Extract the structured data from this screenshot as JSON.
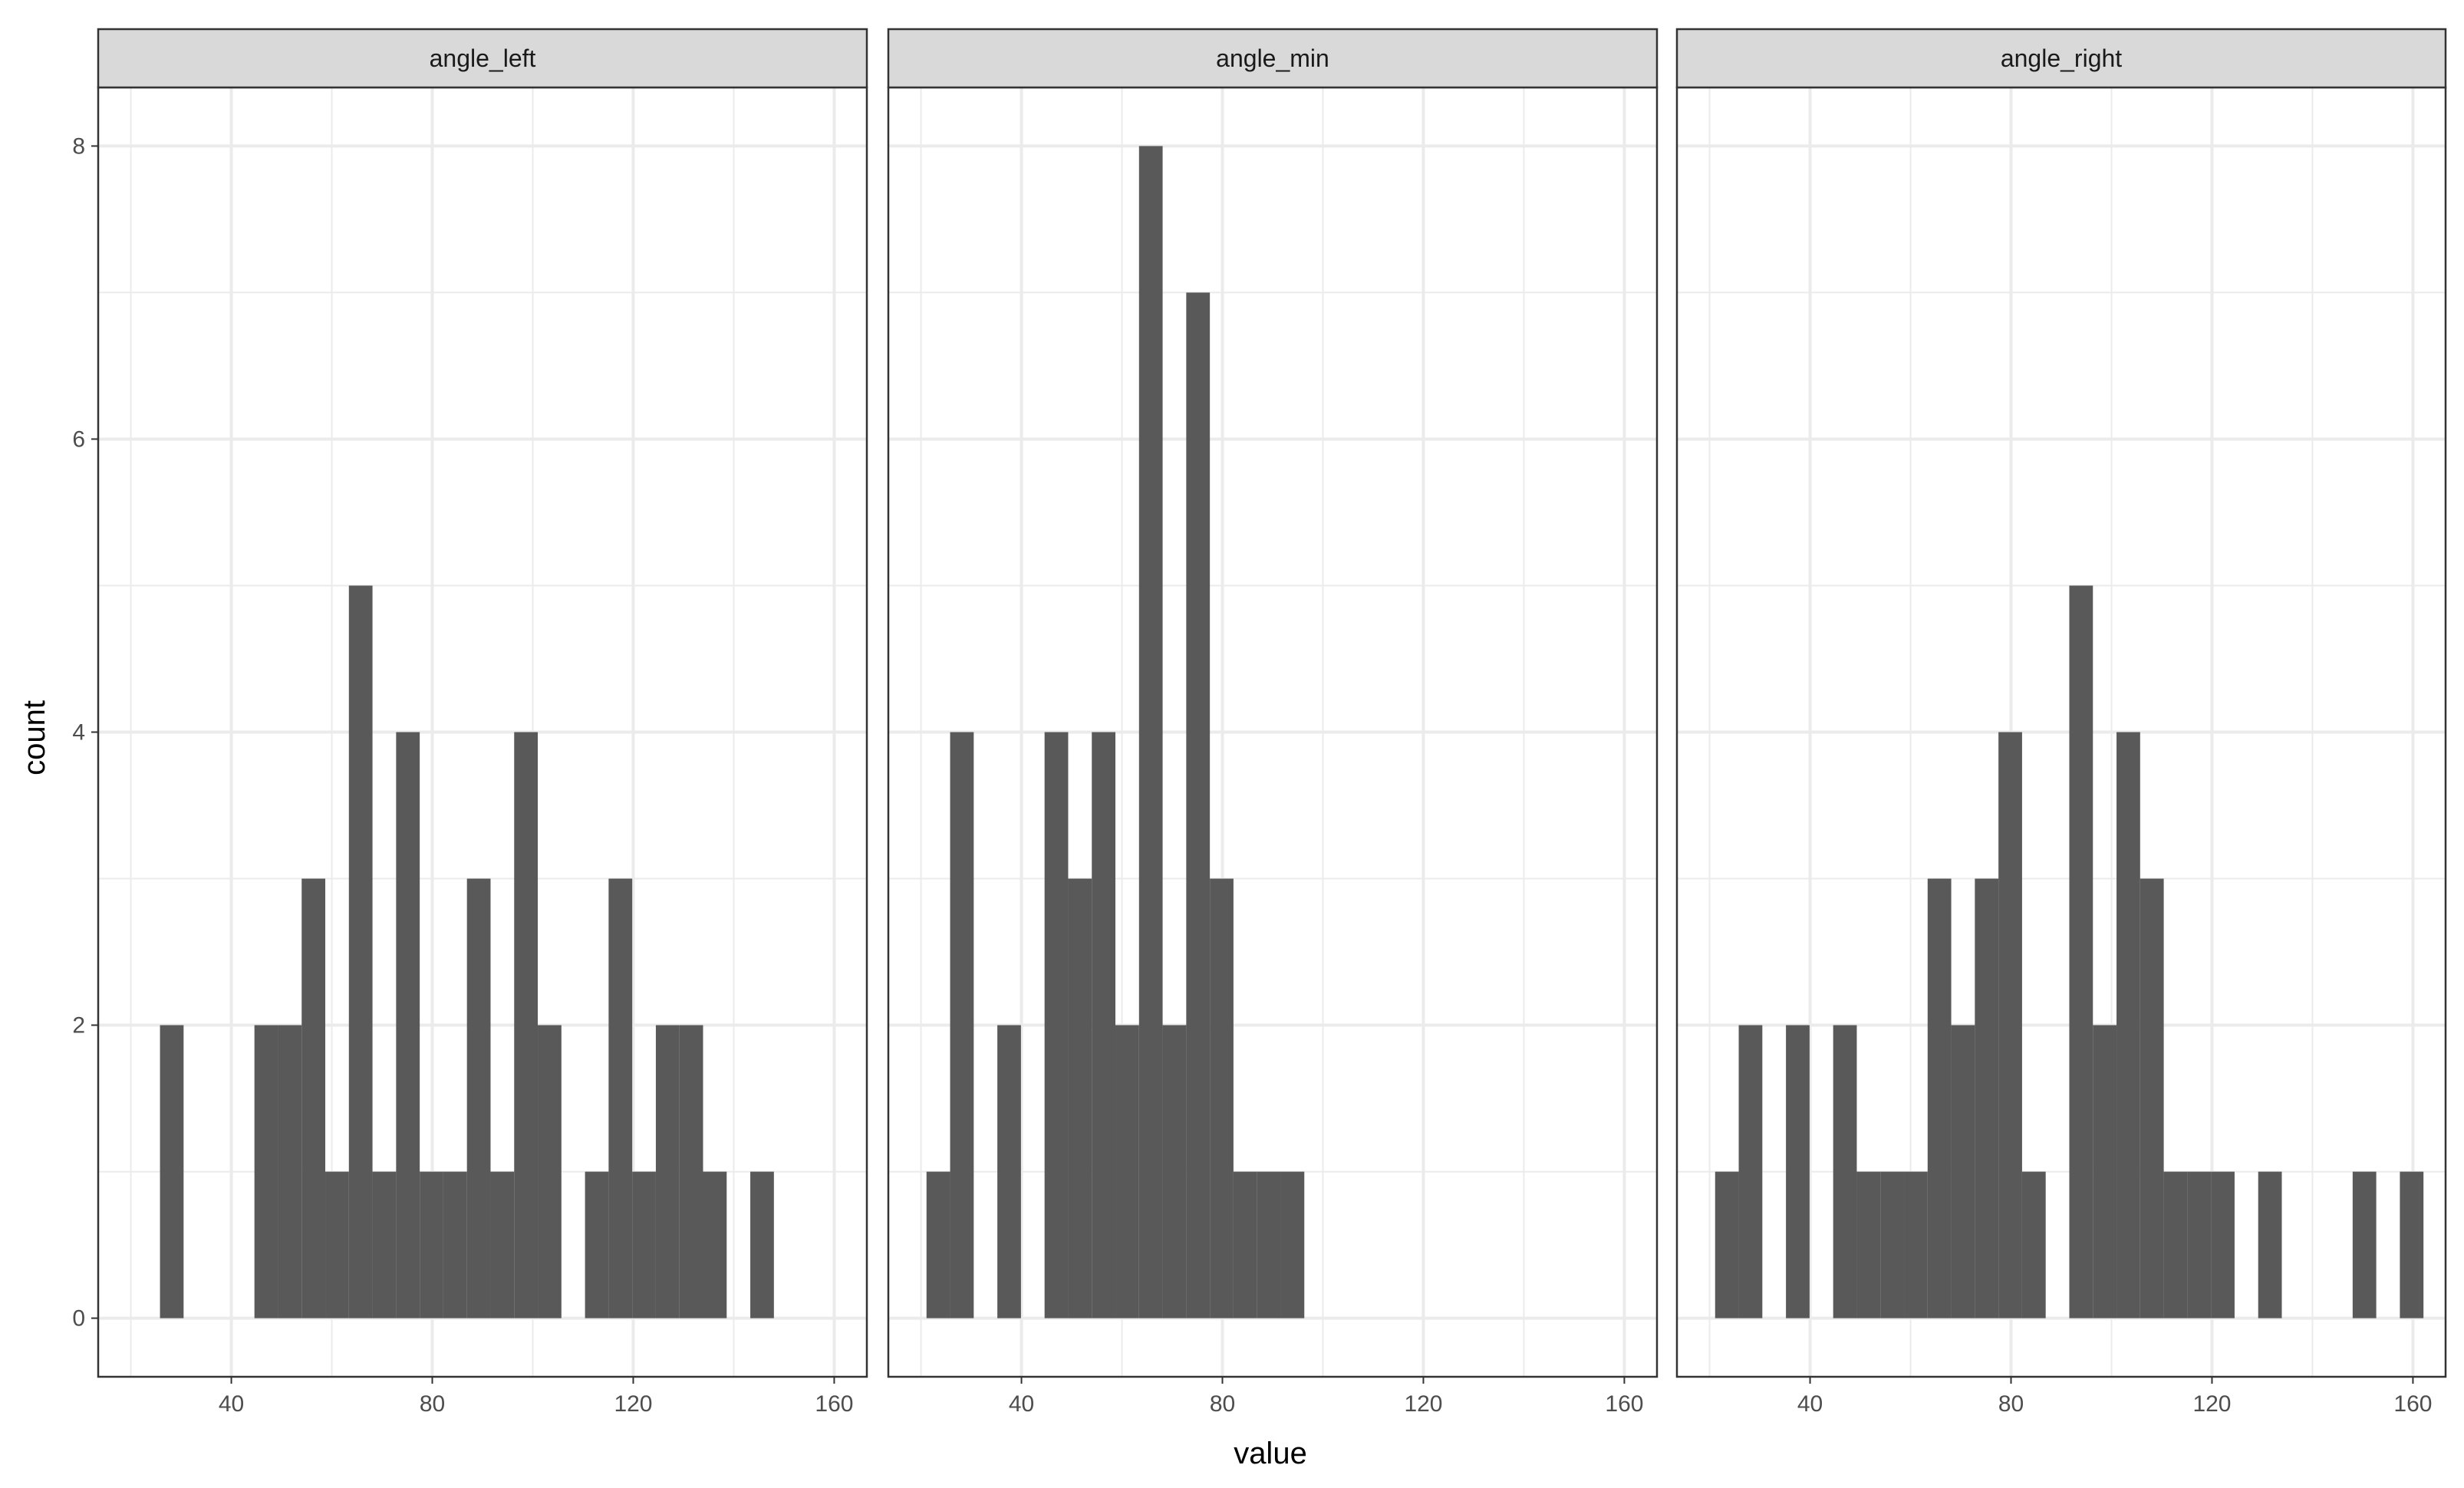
{
  "chart_data": {
    "type": "bar",
    "subtype": "faceted-histogram",
    "xlabel": "value",
    "ylabel": "count",
    "xlim": [
      13.5,
      166.5
    ],
    "ylim": [
      -0.4,
      8.4
    ],
    "x_ticks": [
      40,
      80,
      120,
      160
    ],
    "y_ticks": [
      0,
      2,
      4,
      6,
      8
    ],
    "bin_width": 4.7,
    "grid": true,
    "bar_color": "#595959",
    "strip_color": "#d9d9d9",
    "panel_border_color": "#333333",
    "grid_color": "#ebebeb",
    "facets": [
      {
        "name": "angle_left",
        "bins": [
          {
            "x0": 25.8,
            "x1": 30.5,
            "count": 2
          },
          {
            "x0": 44.6,
            "x1": 49.3,
            "count": 2
          },
          {
            "x0": 49.3,
            "x1": 54.0,
            "count": 2
          },
          {
            "x0": 54.0,
            "x1": 58.7,
            "count": 3
          },
          {
            "x0": 58.7,
            "x1": 63.4,
            "count": 1
          },
          {
            "x0": 63.4,
            "x1": 68.1,
            "count": 5
          },
          {
            "x0": 68.1,
            "x1": 72.8,
            "count": 1
          },
          {
            "x0": 72.8,
            "x1": 77.5,
            "count": 4
          },
          {
            "x0": 77.5,
            "x1": 82.2,
            "count": 1
          },
          {
            "x0": 82.2,
            "x1": 86.9,
            "count": 1
          },
          {
            "x0": 86.9,
            "x1": 91.6,
            "count": 3
          },
          {
            "x0": 91.6,
            "x1": 96.3,
            "count": 1
          },
          {
            "x0": 96.3,
            "x1": 101.0,
            "count": 4
          },
          {
            "x0": 101.0,
            "x1": 105.7,
            "count": 2
          },
          {
            "x0": 110.4,
            "x1": 115.1,
            "count": 1
          },
          {
            "x0": 115.1,
            "x1": 119.8,
            "count": 3
          },
          {
            "x0": 119.8,
            "x1": 124.5,
            "count": 1
          },
          {
            "x0": 124.5,
            "x1": 129.2,
            "count": 2
          },
          {
            "x0": 129.2,
            "x1": 133.9,
            "count": 2
          },
          {
            "x0": 133.9,
            "x1": 138.6,
            "count": 1
          },
          {
            "x0": 143.3,
            "x1": 148.0,
            "count": 1
          }
        ]
      },
      {
        "name": "angle_min",
        "bins": [
          {
            "x0": 21.1,
            "x1": 25.8,
            "count": 1
          },
          {
            "x0": 25.8,
            "x1": 30.5,
            "count": 4
          },
          {
            "x0": 35.2,
            "x1": 39.9,
            "count": 2
          },
          {
            "x0": 44.6,
            "x1": 49.3,
            "count": 4
          },
          {
            "x0": 49.3,
            "x1": 54.0,
            "count": 3
          },
          {
            "x0": 54.0,
            "x1": 58.7,
            "count": 4
          },
          {
            "x0": 58.7,
            "x1": 63.4,
            "count": 2
          },
          {
            "x0": 63.4,
            "x1": 68.1,
            "count": 8
          },
          {
            "x0": 68.1,
            "x1": 72.8,
            "count": 2
          },
          {
            "x0": 72.8,
            "x1": 77.5,
            "count": 7
          },
          {
            "x0": 77.5,
            "x1": 82.2,
            "count": 3
          },
          {
            "x0": 82.2,
            "x1": 86.9,
            "count": 1
          },
          {
            "x0": 86.9,
            "x1": 91.6,
            "count": 1
          },
          {
            "x0": 91.6,
            "x1": 96.3,
            "count": 1
          }
        ]
      },
      {
        "name": "angle_right",
        "bins": [
          {
            "x0": 21.1,
            "x1": 25.8,
            "count": 1
          },
          {
            "x0": 25.8,
            "x1": 30.5,
            "count": 2
          },
          {
            "x0": 35.2,
            "x1": 39.9,
            "count": 2
          },
          {
            "x0": 44.6,
            "x1": 49.3,
            "count": 2
          },
          {
            "x0": 49.3,
            "x1": 54.0,
            "count": 1
          },
          {
            "x0": 54.0,
            "x1": 58.7,
            "count": 1
          },
          {
            "x0": 58.7,
            "x1": 63.4,
            "count": 1
          },
          {
            "x0": 63.4,
            "x1": 68.1,
            "count": 3
          },
          {
            "x0": 68.1,
            "x1": 72.8,
            "count": 2
          },
          {
            "x0": 72.8,
            "x1": 77.5,
            "count": 3
          },
          {
            "x0": 77.5,
            "x1": 82.2,
            "count": 4
          },
          {
            "x0": 82.2,
            "x1": 86.9,
            "count": 1
          },
          {
            "x0": 91.6,
            "x1": 96.3,
            "count": 5
          },
          {
            "x0": 96.3,
            "x1": 101.0,
            "count": 2
          },
          {
            "x0": 101.0,
            "x1": 105.7,
            "count": 4
          },
          {
            "x0": 105.7,
            "x1": 110.4,
            "count": 3
          },
          {
            "x0": 110.4,
            "x1": 115.1,
            "count": 1
          },
          {
            "x0": 115.1,
            "x1": 119.8,
            "count": 1
          },
          {
            "x0": 119.8,
            "x1": 124.5,
            "count": 1
          },
          {
            "x0": 129.2,
            "x1": 133.9,
            "count": 1
          },
          {
            "x0": 148.0,
            "x1": 152.7,
            "count": 1
          },
          {
            "x0": 157.4,
            "x1": 162.1,
            "count": 1
          }
        ]
      }
    ]
  }
}
